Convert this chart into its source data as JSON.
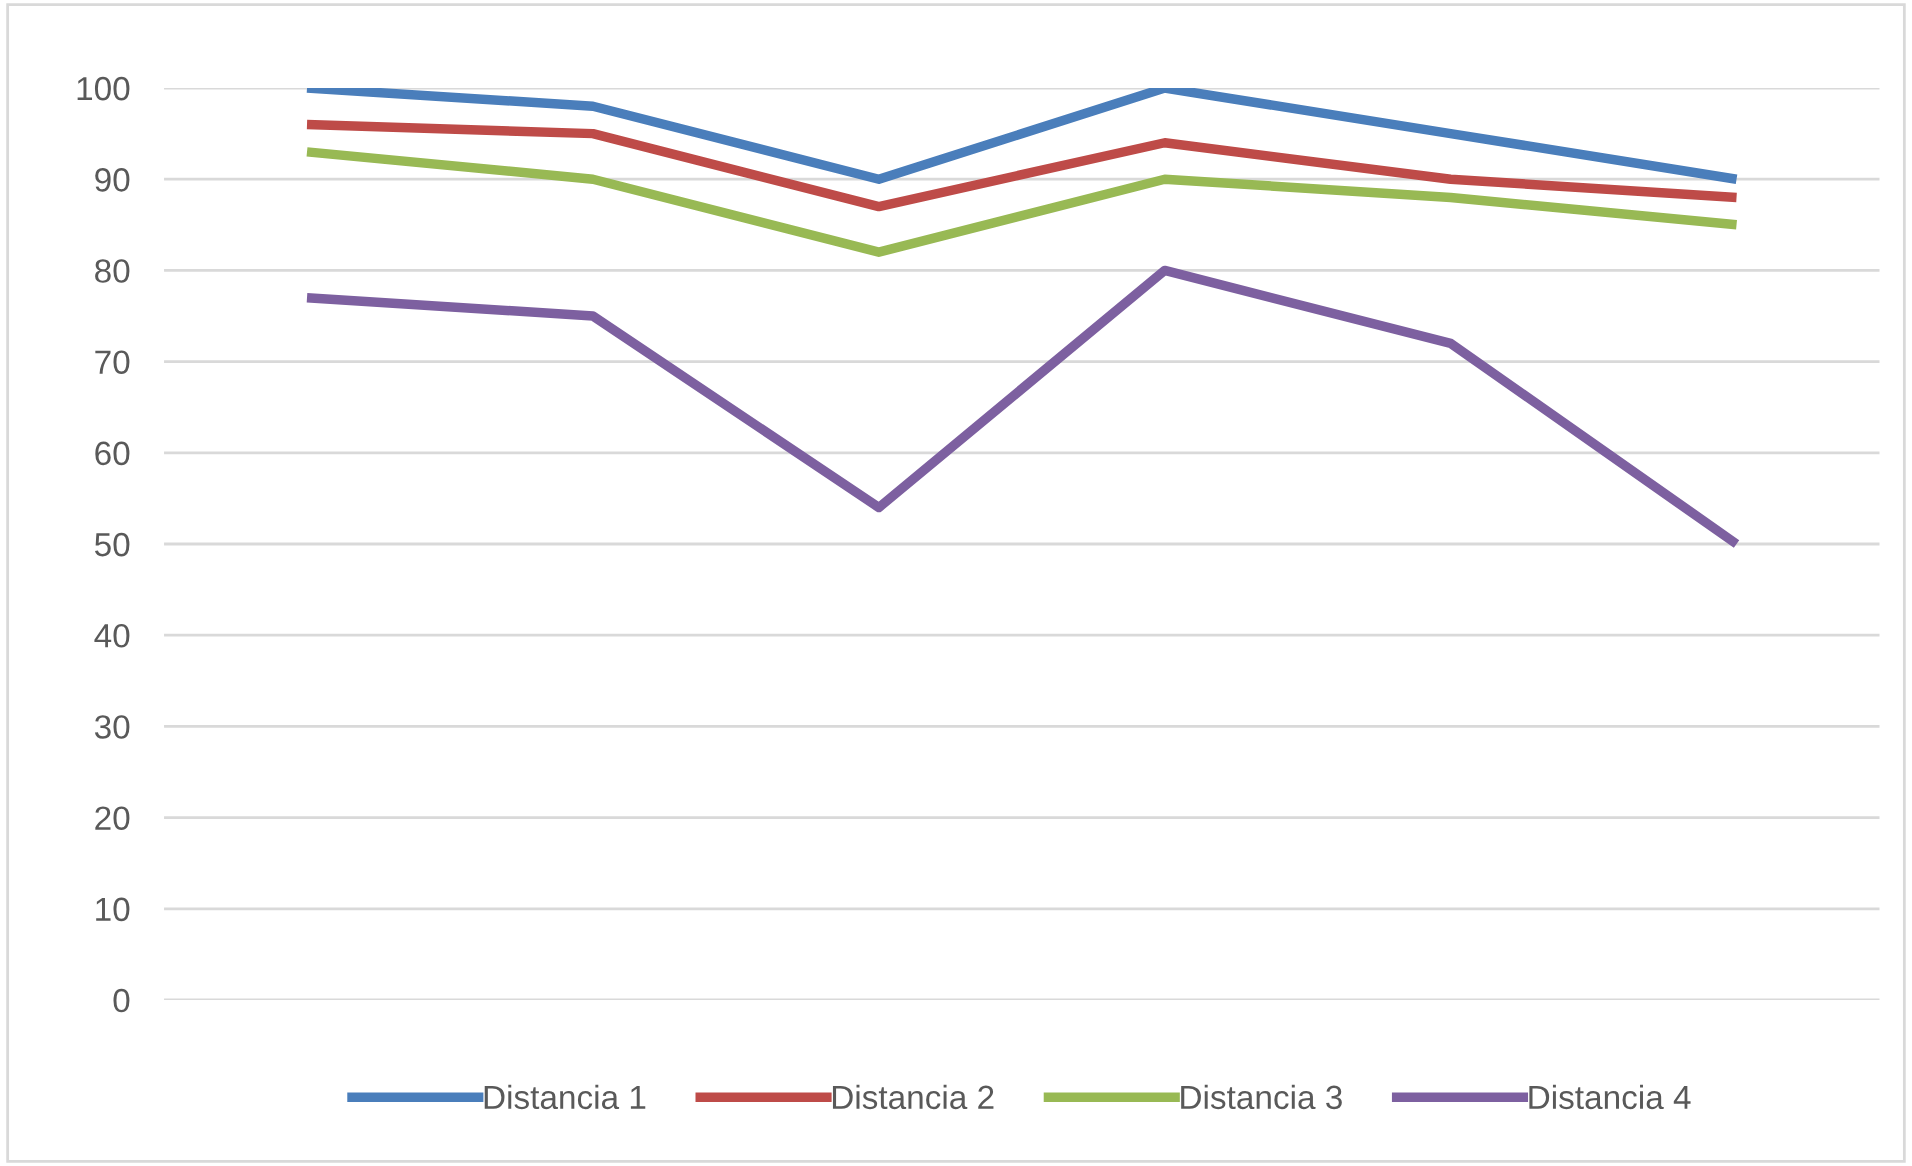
{
  "chart_data": {
    "type": "line",
    "categories": [
      null,
      null,
      null,
      null,
      null,
      null
    ],
    "series": [
      {
        "name": "Distancia 1",
        "color": "#4a7ebb",
        "values": [
          100,
          98,
          90,
          100,
          95,
          90
        ]
      },
      {
        "name": "Distancia 2",
        "color": "#be4b48",
        "values": [
          96,
          95,
          87,
          94,
          90,
          88
        ]
      },
      {
        "name": "Distancia 3",
        "color": "#98b954",
        "values": [
          93,
          90,
          82,
          90,
          88,
          85
        ]
      },
      {
        "name": "Distancia 4",
        "color": "#7d60a0",
        "values": [
          77,
          75,
          54,
          80,
          72,
          50
        ]
      }
    ],
    "ylim": [
      0,
      100
    ],
    "yticks": [
      0,
      10,
      20,
      30,
      40,
      50,
      60,
      70,
      80,
      90,
      100
    ],
    "grid": "y",
    "legend": "bottom",
    "line_style": "solid",
    "marker": "none"
  }
}
